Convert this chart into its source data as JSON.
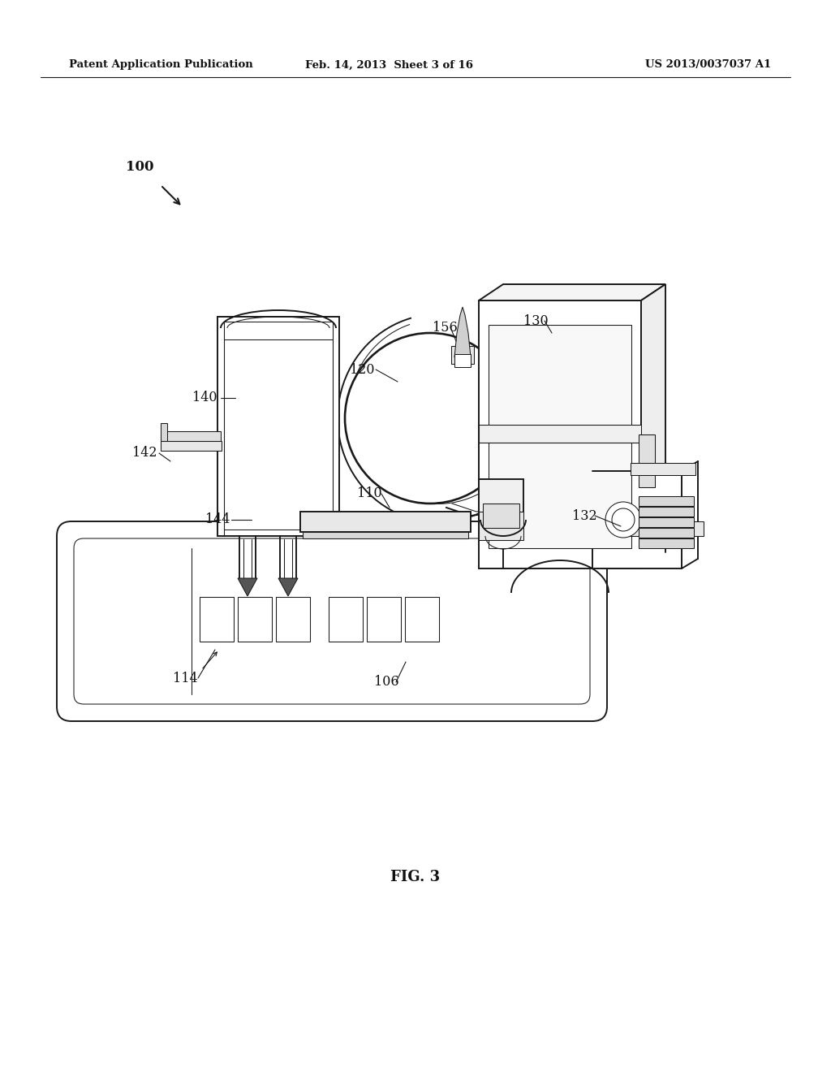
{
  "background_color": "#ffffff",
  "header_left": "Patent Application Publication",
  "header_center": "Feb. 14, 2013  Sheet 3 of 16",
  "header_right": "US 2013/0037037 A1",
  "fig_label": "FIG. 3",
  "line_color": "#1a1a1a",
  "lw_main": 1.4,
  "lw_thin": 0.75,
  "lw_thick": 2.0
}
